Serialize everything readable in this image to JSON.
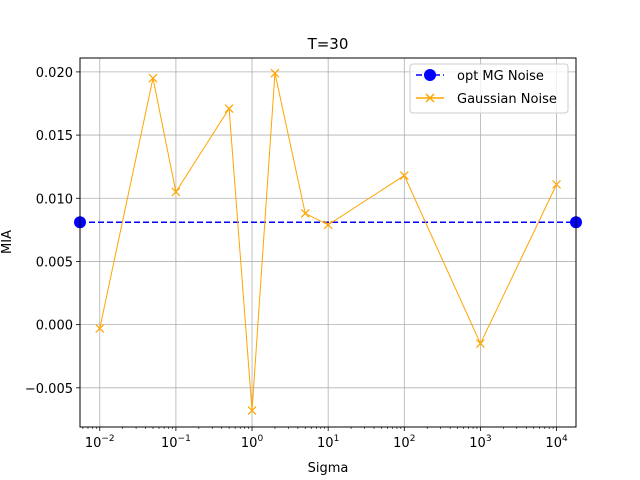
{
  "chart_data": {
    "type": "line",
    "title": "T=30",
    "xlabel": "Sigma",
    "ylabel": "MIA",
    "xscale": "log",
    "xlim": [
      0.0055,
      18000
    ],
    "ylim": [
      -0.0081,
      0.0211
    ],
    "grid": true,
    "legend_position": "top-right",
    "x_ticks": [
      {
        "base": "10",
        "exp": "−2"
      },
      {
        "base": "10",
        "exp": "−1"
      },
      {
        "base": "10",
        "exp": "0"
      },
      {
        "base": "10",
        "exp": "1"
      },
      {
        "base": "10",
        "exp": "2"
      },
      {
        "base": "10",
        "exp": "3"
      },
      {
        "base": "10",
        "exp": "4"
      }
    ],
    "x_tick_values": [
      0.01,
      0.1,
      1,
      10,
      100,
      1000,
      10000
    ],
    "y_ticks": [
      "−0.005",
      "0.000",
      "0.005",
      "0.010",
      "0.015",
      "0.020"
    ],
    "y_tick_values": [
      -0.005,
      0,
      0.005,
      0.01,
      0.015,
      0.02
    ],
    "series": [
      {
        "name": "opt MG Noise",
        "color": "#0000ff",
        "style": "dashed",
        "marker": "circle",
        "x": [
          0.0055,
          18000
        ],
        "y": [
          0.0081,
          0.0081
        ]
      },
      {
        "name": "Gaussian Noise",
        "color": "#ffa500",
        "style": "solid",
        "marker": "x",
        "x": [
          0.01,
          0.05,
          0.1,
          0.5,
          1,
          2,
          5,
          10,
          100,
          1000,
          10000
        ],
        "y": [
          -0.0003,
          0.0195,
          0.0105,
          0.0171,
          -0.0068,
          0.0199,
          0.0088,
          0.0079,
          0.0118,
          -0.0015,
          0.0111
        ]
      }
    ]
  }
}
